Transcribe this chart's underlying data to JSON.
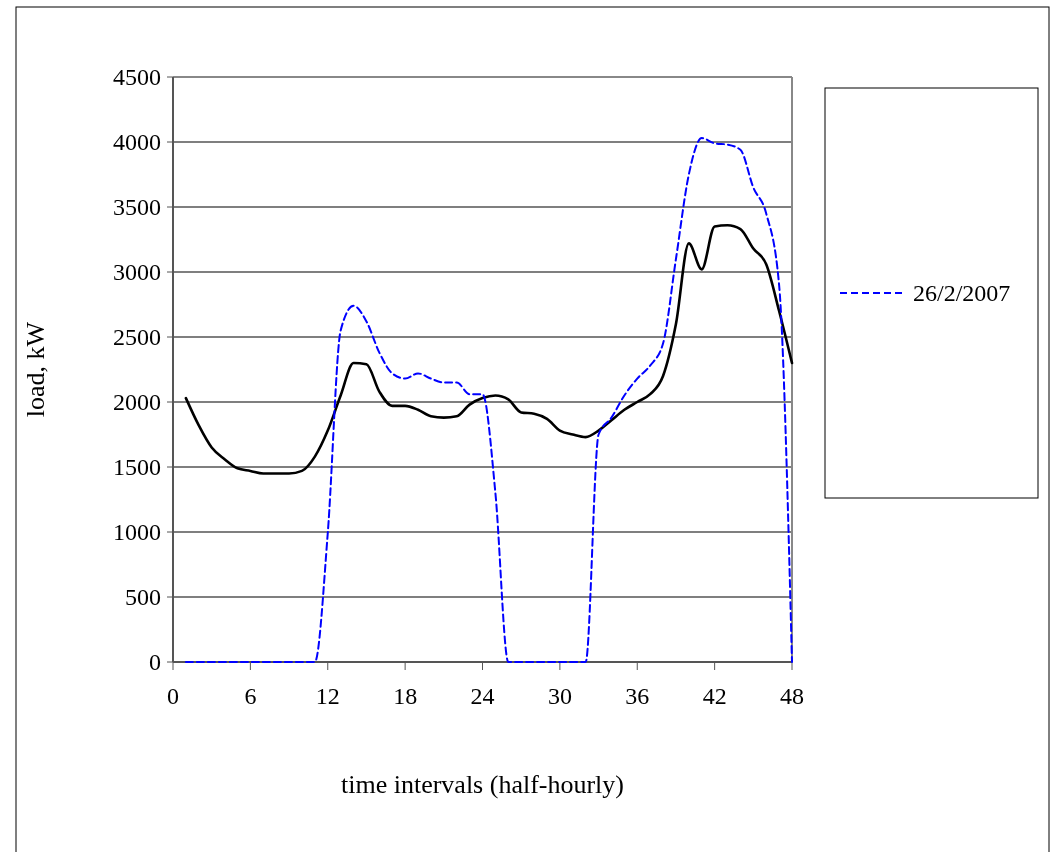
{
  "chart_data": {
    "type": "line",
    "xlabel": "time intervals (half-hourly)",
    "ylabel": "load, kW",
    "x": [
      1,
      2,
      3,
      4,
      5,
      6,
      7,
      8,
      9,
      10,
      11,
      12,
      13,
      14,
      15,
      16,
      17,
      18,
      19,
      20,
      21,
      22,
      23,
      24,
      25,
      26,
      27,
      28,
      29,
      30,
      31,
      32,
      33,
      34,
      35,
      36,
      37,
      38,
      39,
      40,
      41,
      42,
      43,
      44,
      45,
      46,
      47,
      48
    ],
    "series": [
      {
        "color": "#000000",
        "line_style": "solid",
        "values": [
          2030,
          1820,
          1650,
          1560,
          1490,
          1470,
          1450,
          1450,
          1450,
          1470,
          1580,
          1780,
          2050,
          2300,
          2290,
          2080,
          1970,
          1970,
          1940,
          1890,
          1880,
          1890,
          1980,
          2030,
          2050,
          2020,
          1920,
          1910,
          1870,
          1780,
          1750,
          1730,
          1780,
          1860,
          1940,
          2000,
          2060,
          2200,
          2600,
          3220,
          3020,
          3350,
          3360,
          3330,
          3180,
          3060,
          2700,
          2300
        ]
      },
      {
        "name": "26/2/2007",
        "color": "#0000ff",
        "line_style": "dashed",
        "values": [
          0,
          0,
          0,
          0,
          0,
          0,
          0,
          0,
          0,
          0,
          0,
          990,
          2550,
          2740,
          2620,
          2380,
          2220,
          2180,
          2220,
          2180,
          2150,
          2150,
          2060,
          2060,
          1300,
          0,
          0,
          0,
          0,
          0,
          0,
          0,
          1750,
          1880,
          2050,
          2180,
          2280,
          2450,
          3100,
          3750,
          4030,
          3990,
          3980,
          3940,
          3650,
          3450,
          2900,
          0
        ]
      }
    ],
    "xlim": [
      0,
      48
    ],
    "xticks": [
      0,
      6,
      12,
      18,
      24,
      30,
      36,
      42,
      48
    ],
    "ylim": [
      0,
      4500
    ],
    "yticks": [
      0,
      500,
      1000,
      1500,
      2000,
      2500,
      3000,
      3500,
      4000,
      4500
    ],
    "grid": "y",
    "legend": "right",
    "marker": "none"
  }
}
